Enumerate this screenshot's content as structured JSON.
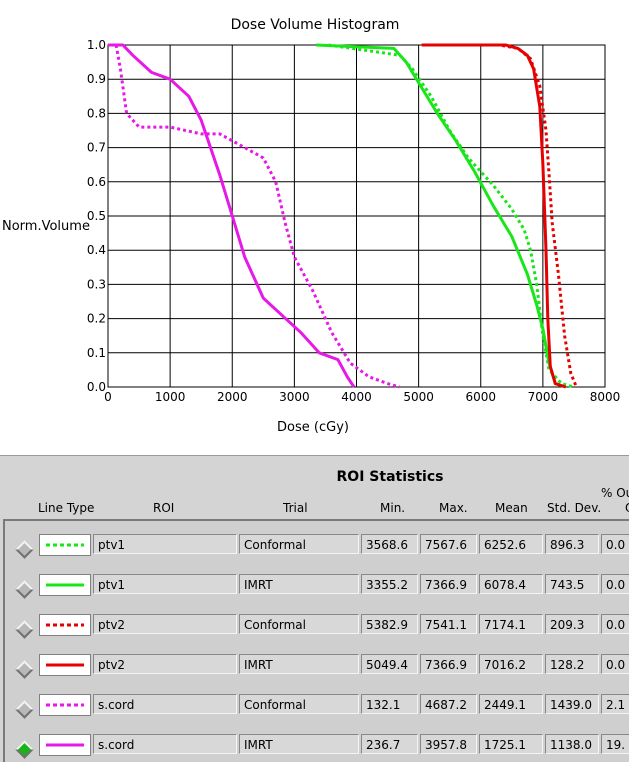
{
  "chart_data": {
    "type": "line",
    "title": "Dose Volume Histogram",
    "xlabel": "Dose (cGy)",
    "ylabel": "Norm.Volume",
    "xlim": [
      0,
      8000
    ],
    "ylim": [
      0,
      1.0
    ],
    "x_ticks": [
      "0",
      "1000",
      "2000",
      "3000",
      "4000",
      "5000",
      "6000",
      "7000",
      "8000"
    ],
    "y_ticks": [
      "0.0",
      "0.1",
      "0.2",
      "0.3",
      "0.4",
      "0.5",
      "0.6",
      "0.7",
      "0.8",
      "0.9",
      "1.0"
    ],
    "grid": true,
    "series": [
      {
        "roi": "ptv1",
        "trial": "Conformal",
        "color": "#19e619",
        "style": "dotted",
        "x": [
          3550,
          4700,
          4900,
          5200,
          5500,
          5800,
          6200,
          6500,
          6700,
          6800,
          6900,
          7000,
          7100,
          7300,
          7500
        ],
        "y": [
          1.0,
          0.97,
          0.93,
          0.85,
          0.75,
          0.67,
          0.59,
          0.52,
          0.46,
          0.4,
          0.3,
          0.15,
          0.05,
          0.01,
          0.0
        ]
      },
      {
        "roi": "ptv1",
        "trial": "IMRT",
        "color": "#19e619",
        "style": "solid",
        "x": [
          3350,
          4600,
          4800,
          5000,
          5300,
          5600,
          5900,
          6200,
          6500,
          6750,
          6900,
          7000,
          7100,
          7200,
          7370
        ],
        "y": [
          1.0,
          0.99,
          0.95,
          0.89,
          0.8,
          0.72,
          0.63,
          0.53,
          0.44,
          0.33,
          0.24,
          0.17,
          0.07,
          0.01,
          0.0
        ]
      },
      {
        "roi": "ptv2",
        "trial": "Conformal",
        "color": "#e60000",
        "style": "dotted",
        "x": [
          5380,
          6300,
          6600,
          6800,
          6950,
          7050,
          7100,
          7150,
          7250,
          7350,
          7450,
          7540
        ],
        "y": [
          1.0,
          1.0,
          0.99,
          0.96,
          0.88,
          0.75,
          0.62,
          0.48,
          0.33,
          0.15,
          0.04,
          0.0
        ]
      },
      {
        "roi": "ptv2",
        "trial": "IMRT",
        "color": "#e60000",
        "style": "solid",
        "x": [
          5050,
          6400,
          6600,
          6750,
          6850,
          6950,
          7000,
          7050,
          7080,
          7120,
          7200,
          7367
        ],
        "y": [
          1.0,
          1.0,
          0.99,
          0.97,
          0.93,
          0.82,
          0.65,
          0.4,
          0.2,
          0.06,
          0.01,
          0.0
        ]
      },
      {
        "roi": "s.cord",
        "trial": "Conformal",
        "color": "#e619e6",
        "style": "dotted",
        "x": [
          130,
          200,
          300,
          500,
          1000,
          1500,
          1800,
          2200,
          2500,
          2700,
          2850,
          3000,
          3300,
          3600,
          3900,
          4200,
          4500,
          4690
        ],
        "y": [
          1.0,
          0.93,
          0.8,
          0.76,
          0.76,
          0.74,
          0.74,
          0.7,
          0.67,
          0.6,
          0.48,
          0.38,
          0.28,
          0.16,
          0.07,
          0.03,
          0.01,
          0.0
        ]
      },
      {
        "roi": "s.cord",
        "trial": "IMRT",
        "color": "#e619e6",
        "style": "solid",
        "x": [
          0,
          240,
          400,
          700,
          1000,
          1300,
          1500,
          1800,
          2000,
          2200,
          2500,
          2800,
          3100,
          3400,
          3700,
          3850,
          3960
        ],
        "y": [
          1.0,
          1.0,
          0.97,
          0.92,
          0.9,
          0.85,
          0.78,
          0.62,
          0.5,
          0.38,
          0.26,
          0.21,
          0.16,
          0.1,
          0.08,
          0.03,
          0.0
        ]
      }
    ]
  },
  "stats": {
    "title": "ROI Statistics",
    "headers": {
      "line_type": "Line Type",
      "roi": "ROI",
      "trial": "Trial",
      "min": "Min.",
      "max": "Max.",
      "mean": "Mean",
      "std": "Std. Dev.",
      "pct_out_top": "% Ou",
      "pct_out_bottom": "O"
    },
    "rows": [
      {
        "roi": "ptv1",
        "trial": "Conformal",
        "min": "3568.6",
        "max": "7567.6",
        "mean": "6252.6",
        "std": "896.3",
        "pct": "0.0",
        "color": "#19e619",
        "dash": "dotted",
        "selected": false
      },
      {
        "roi": "ptv1",
        "trial": "IMRT",
        "min": "3355.2",
        "max": "7366.9",
        "mean": "6078.4",
        "std": "743.5",
        "pct": "0.0",
        "color": "#19e619",
        "dash": "solid",
        "selected": false
      },
      {
        "roi": "ptv2",
        "trial": "Conformal",
        "min": "5382.9",
        "max": "7541.1",
        "mean": "7174.1",
        "std": "209.3",
        "pct": "0.0",
        "color": "#e60000",
        "dash": "dotted",
        "selected": false
      },
      {
        "roi": "ptv2",
        "trial": "IMRT",
        "min": "5049.4",
        "max": "7366.9",
        "mean": "7016.2",
        "std": "128.2",
        "pct": "0.0",
        "color": "#e60000",
        "dash": "solid",
        "selected": false
      },
      {
        "roi": "s.cord",
        "trial": "Conformal",
        "min": "132.1",
        "max": "4687.2",
        "mean": "2449.1",
        "std": "1439.0",
        "pct": "2.1",
        "color": "#e619e6",
        "dash": "dotted",
        "selected": false
      },
      {
        "roi": "s.cord",
        "trial": "IMRT",
        "min": "236.7",
        "max": "3957.8",
        "mean": "1725.1",
        "std": "1138.0",
        "pct": "19.",
        "color": "#e619e6",
        "dash": "solid",
        "selected": true
      }
    ]
  }
}
